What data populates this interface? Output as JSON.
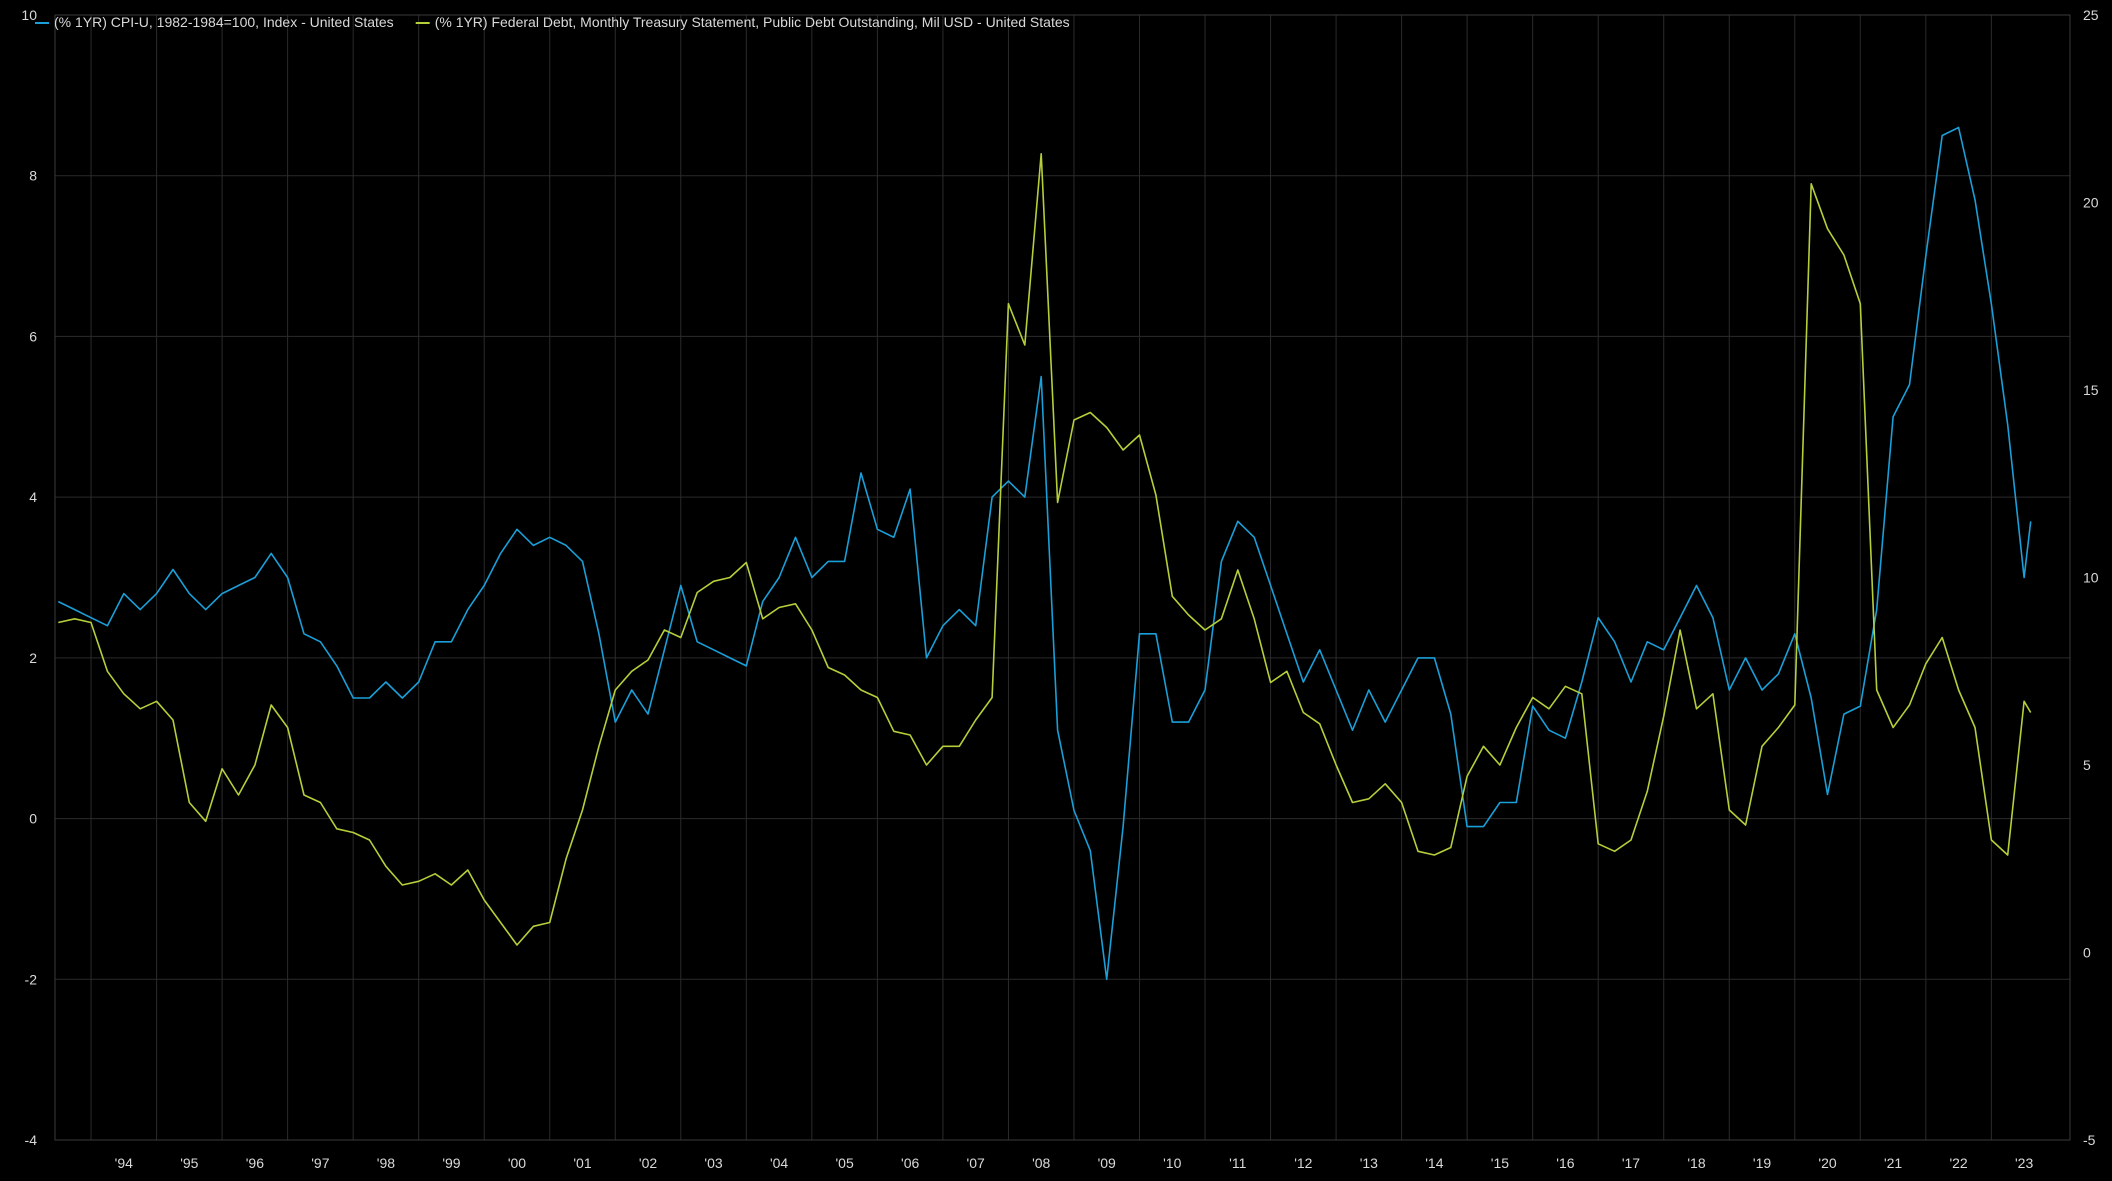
{
  "chart_data": {
    "type": "line",
    "title": "",
    "xlabel": "",
    "grid": true,
    "legend_position": "top-left",
    "background": "#000000",
    "gridcolor": "#2b2b2b",
    "x_range": [
      1993.45,
      2024.2
    ],
    "x_ticks": [
      {
        "label": "'94",
        "x": 1994.5
      },
      {
        "label": "'95",
        "x": 1995.5
      },
      {
        "label": "'96",
        "x": 1996.5
      },
      {
        "label": "'97",
        "x": 1997.5
      },
      {
        "label": "'98",
        "x": 1998.5
      },
      {
        "label": "'99",
        "x": 1999.5
      },
      {
        "label": "'00",
        "x": 2000.5
      },
      {
        "label": "'01",
        "x": 2001.5
      },
      {
        "label": "'02",
        "x": 2002.5
      },
      {
        "label": "'03",
        "x": 2003.5
      },
      {
        "label": "'04",
        "x": 2004.5
      },
      {
        "label": "'05",
        "x": 2005.5
      },
      {
        "label": "'06",
        "x": 2006.5
      },
      {
        "label": "'07",
        "x": 2007.5
      },
      {
        "label": "'08",
        "x": 2008.5
      },
      {
        "label": "'09",
        "x": 2009.5
      },
      {
        "label": "'10",
        "x": 2010.5
      },
      {
        "label": "'11",
        "x": 2011.5
      },
      {
        "label": "'12",
        "x": 2012.5
      },
      {
        "label": "'13",
        "x": 2013.5
      },
      {
        "label": "'14",
        "x": 2014.5
      },
      {
        "label": "'15",
        "x": 2015.5
      },
      {
        "label": "'16",
        "x": 2016.5
      },
      {
        "label": "'17",
        "x": 2017.5
      },
      {
        "label": "'18",
        "x": 2018.5
      },
      {
        "label": "'19",
        "x": 2019.5
      },
      {
        "label": "'20",
        "x": 2020.5
      },
      {
        "label": "'21",
        "x": 2021.5
      },
      {
        "label": "'22",
        "x": 2022.5
      },
      {
        "label": "'23",
        "x": 2023.5
      }
    ],
    "y_left": {
      "range": [
        -4,
        10
      ],
      "ticks": [
        -4,
        -2,
        0,
        2,
        4,
        6,
        8,
        10
      ]
    },
    "y_right": {
      "range": [
        -5,
        25
      ],
      "ticks": [
        -5,
        0,
        5,
        10,
        15,
        20,
        25
      ]
    },
    "series": [
      {
        "name": "(% 1YR) CPI-U, 1982-1984=100, Index - United States",
        "axis": "left",
        "color": "#1a9fd8",
        "x": [
          1993.5,
          1993.75,
          1994.0,
          1994.25,
          1994.5,
          1994.75,
          1995.0,
          1995.25,
          1995.5,
          1995.75,
          1996.0,
          1996.25,
          1996.5,
          1996.75,
          1997.0,
          1997.25,
          1997.5,
          1997.75,
          1998.0,
          1998.25,
          1998.5,
          1998.75,
          1999.0,
          1999.25,
          1999.5,
          1999.75,
          2000.0,
          2000.25,
          2000.5,
          2000.75,
          2001.0,
          2001.25,
          2001.5,
          2001.75,
          2002.0,
          2002.25,
          2002.5,
          2002.75,
          2003.0,
          2003.25,
          2003.5,
          2003.75,
          2004.0,
          2004.25,
          2004.5,
          2004.75,
          2005.0,
          2005.25,
          2005.5,
          2005.75,
          2006.0,
          2006.25,
          2006.5,
          2006.75,
          2007.0,
          2007.25,
          2007.5,
          2007.75,
          2008.0,
          2008.25,
          2008.5,
          2008.75,
          2009.0,
          2009.25,
          2009.5,
          2009.75,
          2010.0,
          2010.25,
          2010.5,
          2010.75,
          2011.0,
          2011.25,
          2011.5,
          2011.75,
          2012.0,
          2012.25,
          2012.5,
          2012.75,
          2013.0,
          2013.25,
          2013.5,
          2013.75,
          2014.0,
          2014.25,
          2014.5,
          2014.75,
          2015.0,
          2015.25,
          2015.5,
          2015.75,
          2016.0,
          2016.25,
          2016.5,
          2016.75,
          2017.0,
          2017.25,
          2017.5,
          2017.75,
          2018.0,
          2018.25,
          2018.5,
          2018.75,
          2019.0,
          2019.25,
          2019.5,
          2019.75,
          2020.0,
          2020.25,
          2020.5,
          2020.75,
          2021.0,
          2021.25,
          2021.5,
          2021.75,
          2022.0,
          2022.25,
          2022.5,
          2022.75,
          2023.0,
          2023.25,
          2023.5,
          2023.6
        ],
        "y": [
          2.7,
          2.6,
          2.5,
          2.4,
          2.8,
          2.6,
          2.8,
          3.1,
          2.8,
          2.6,
          2.8,
          2.9,
          3.0,
          3.3,
          3.0,
          2.3,
          2.2,
          1.9,
          1.5,
          1.5,
          1.7,
          1.5,
          1.7,
          2.2,
          2.2,
          2.6,
          2.9,
          3.3,
          3.6,
          3.4,
          3.5,
          3.4,
          3.2,
          2.3,
          1.2,
          1.6,
          1.3,
          2.1,
          2.9,
          2.2,
          2.1,
          2.0,
          1.9,
          2.7,
          3.0,
          3.5,
          3.0,
          3.2,
          3.2,
          4.3,
          3.6,
          3.5,
          4.1,
          2.0,
          2.4,
          2.6,
          2.4,
          4.0,
          4.2,
          4.0,
          5.5,
          1.1,
          0.1,
          -0.4,
          -2.0,
          -0.1,
          2.3,
          2.3,
          1.2,
          1.2,
          1.6,
          3.2,
          3.7,
          3.5,
          2.9,
          2.3,
          1.7,
          2.1,
          1.6,
          1.1,
          1.6,
          1.2,
          1.6,
          2.0,
          2.0,
          1.3,
          -0.1,
          -0.1,
          0.2,
          0.2,
          1.4,
          1.1,
          1.0,
          1.7,
          2.5,
          2.2,
          1.7,
          2.2,
          2.1,
          2.5,
          2.9,
          2.5,
          1.6,
          2.0,
          1.6,
          1.8,
          2.3,
          1.5,
          0.3,
          1.3,
          1.4,
          2.6,
          5.0,
          5.4,
          7.0,
          8.5,
          8.6,
          7.7,
          6.4,
          4.9,
          3.0,
          3.7
        ]
      },
      {
        "name": "(% 1YR) Federal Debt, Monthly Treasury Statement, Public Debt Outstanding, Mil USD - United States",
        "axis": "right",
        "color": "#b5cf3a",
        "x": [
          1993.5,
          1993.75,
          1994.0,
          1994.25,
          1994.5,
          1994.75,
          1995.0,
          1995.25,
          1995.5,
          1995.75,
          1996.0,
          1996.25,
          1996.5,
          1996.75,
          1997.0,
          1997.25,
          1997.5,
          1997.75,
          1998.0,
          1998.25,
          1998.5,
          1998.75,
          1999.0,
          1999.25,
          1999.5,
          1999.75,
          2000.0,
          2000.25,
          2000.5,
          2000.75,
          2001.0,
          2001.25,
          2001.5,
          2001.75,
          2002.0,
          2002.25,
          2002.5,
          2002.75,
          2003.0,
          2003.25,
          2003.5,
          2003.75,
          2004.0,
          2004.25,
          2004.5,
          2004.75,
          2005.0,
          2005.25,
          2005.5,
          2005.75,
          2006.0,
          2006.25,
          2006.5,
          2006.75,
          2007.0,
          2007.25,
          2007.5,
          2007.75,
          2008.0,
          2008.25,
          2008.5,
          2008.75,
          2009.0,
          2009.25,
          2009.5,
          2009.75,
          2010.0,
          2010.25,
          2010.5,
          2010.75,
          2011.0,
          2011.25,
          2011.5,
          2011.75,
          2012.0,
          2012.25,
          2012.5,
          2012.75,
          2013.0,
          2013.25,
          2013.5,
          2013.75,
          2014.0,
          2014.25,
          2014.5,
          2014.75,
          2015.0,
          2015.25,
          2015.5,
          2015.75,
          2016.0,
          2016.25,
          2016.5,
          2016.75,
          2017.0,
          2017.25,
          2017.5,
          2017.75,
          2018.0,
          2018.25,
          2018.5,
          2018.75,
          2019.0,
          2019.25,
          2019.5,
          2019.75,
          2020.0,
          2020.25,
          2020.5,
          2020.75,
          2021.0,
          2021.25,
          2021.5,
          2021.75,
          2022.0,
          2022.25,
          2022.5,
          2022.75,
          2023.0,
          2023.25,
          2023.5,
          2023.6
        ],
        "y": [
          8.8,
          8.9,
          8.8,
          7.5,
          6.9,
          6.5,
          6.7,
          6.2,
          4.0,
          3.5,
          4.9,
          4.2,
          5.0,
          6.6,
          6.0,
          4.2,
          4.0,
          3.3,
          3.2,
          3.0,
          2.3,
          1.8,
          1.9,
          2.1,
          1.8,
          2.2,
          1.4,
          0.8,
          0.2,
          0.7,
          0.8,
          2.5,
          3.8,
          5.5,
          7.0,
          7.5,
          7.8,
          8.6,
          8.4,
          9.6,
          9.9,
          10.0,
          10.4,
          8.9,
          9.2,
          9.3,
          8.6,
          7.6,
          7.4,
          7.0,
          6.8,
          5.9,
          5.8,
          5.0,
          5.5,
          5.5,
          6.2,
          6.8,
          17.3,
          16.2,
          21.3,
          12.0,
          14.2,
          14.4,
          14.0,
          13.4,
          13.8,
          12.2,
          9.5,
          9.0,
          8.6,
          8.9,
          10.2,
          8.9,
          7.2,
          7.5,
          6.4,
          6.1,
          5.0,
          4.0,
          4.1,
          4.5,
          4.0,
          2.7,
          2.6,
          2.8,
          4.7,
          5.5,
          5.0,
          6.0,
          6.8,
          6.5,
          7.1,
          6.9,
          2.9,
          2.7,
          3.0,
          4.3,
          6.3,
          8.6,
          6.5,
          6.9,
          3.8,
          3.4,
          5.5,
          6.0,
          6.6,
          20.5,
          19.3,
          18.6,
          17.3,
          7.0,
          6.0,
          6.6,
          7.7,
          8.4,
          7.0,
          6.0,
          3.0,
          2.6,
          6.7,
          6.4
        ]
      }
    ]
  }
}
